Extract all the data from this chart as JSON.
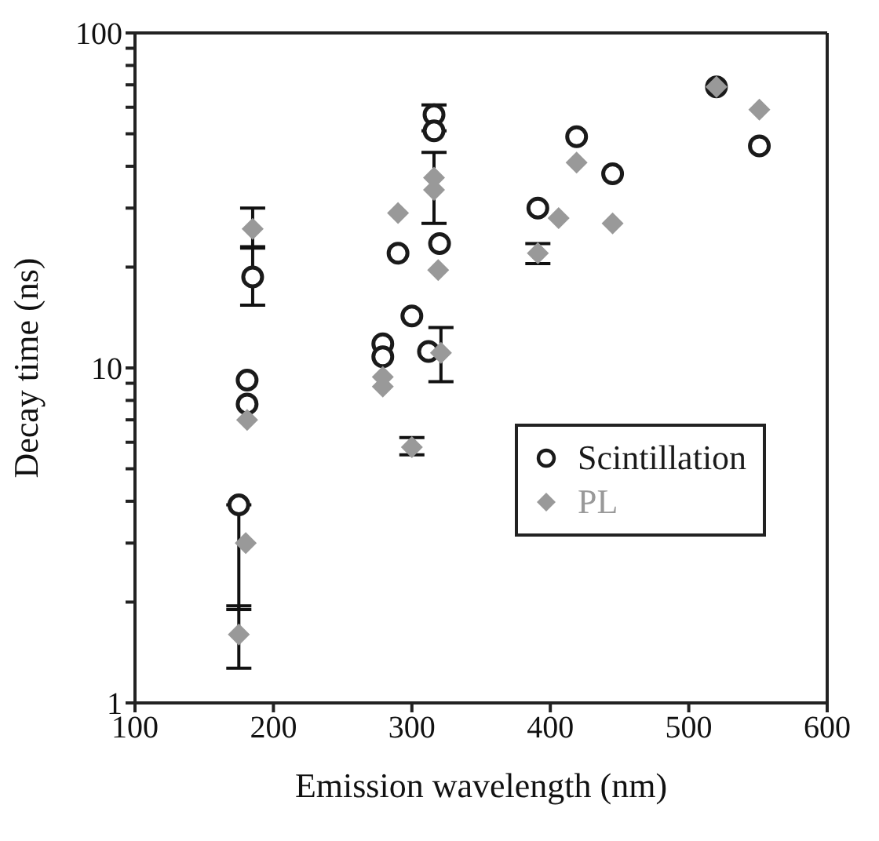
{
  "chart_data": {
    "type": "scatter",
    "xlabel": "Emission wavelength (nm)",
    "ylabel": "Decay time (ns)",
    "log": "y",
    "xlim": [
      100,
      600
    ],
    "xticks": [
      100,
      200,
      300,
      400,
      500,
      600
    ],
    "ylim": [
      1,
      100
    ],
    "yticks": [
      1,
      {
        "value": 2,
        "label": null
      },
      {
        "value": 3,
        "label": null
      },
      {
        "value": 4,
        "label": null
      },
      {
        "value": 5,
        "label": null
      },
      {
        "value": 6,
        "label": null
      },
      {
        "value": 7,
        "label": null
      },
      {
        "value": 8,
        "label": null
      },
      {
        "value": 9,
        "label": null
      },
      10,
      {
        "value": 20,
        "label": null
      },
      {
        "value": 30,
        "label": null
      },
      {
        "value": 40,
        "label": null
      },
      {
        "value": 50,
        "label": null
      },
      {
        "value": 60,
        "label": null
      },
      {
        "value": 70,
        "label": null
      },
      {
        "value": 80,
        "label": null
      },
      {
        "value": 90,
        "label": null
      },
      100
    ],
    "legend": "right",
    "grid": false,
    "series": [
      {
        "name": "Scintillation",
        "color": "#1a1a1a",
        "marker": "circle",
        "x": [
          175,
          181,
          181,
          185,
          279,
          279,
          290,
          300,
          312,
          316,
          316,
          320,
          391,
          419,
          445,
          520,
          551
        ],
        "values": [
          3.9,
          9.2,
          7.8,
          18.7,
          11.8,
          10.8,
          22,
          14.3,
          11.2,
          57,
          51,
          23.5,
          30,
          49,
          38,
          69,
          46
        ],
        "errors": [
          [
            1.9,
            3.9
          ],
          null,
          null,
          [
            15.4,
            22.8
          ],
          null,
          null,
          null,
          null,
          null,
          [
            51,
            61
          ],
          null,
          null,
          null,
          null,
          null,
          null,
          null
        ]
      },
      {
        "name": "PL",
        "color": "#999999",
        "marker": "diamond",
        "x": [
          175,
          180,
          181,
          185,
          279,
          279,
          290,
          300,
          316,
          316,
          319,
          321,
          391,
          406,
          419,
          445,
          520,
          551
        ],
        "values": [
          1.6,
          3.0,
          7.0,
          26,
          9.4,
          8.8,
          29,
          5.8,
          37,
          34,
          19.6,
          11.1,
          22,
          28,
          41,
          27,
          69,
          59
        ],
        "errors": [
          [
            1.27,
            1.95
          ],
          null,
          null,
          [
            23,
            30
          ],
          null,
          null,
          null,
          [
            5.5,
            6.2
          ],
          [
            27,
            44
          ],
          null,
          null,
          [
            9.1,
            13.2
          ],
          [
            20.5,
            23.5
          ],
          null,
          null,
          null,
          null,
          null
        ]
      }
    ]
  }
}
